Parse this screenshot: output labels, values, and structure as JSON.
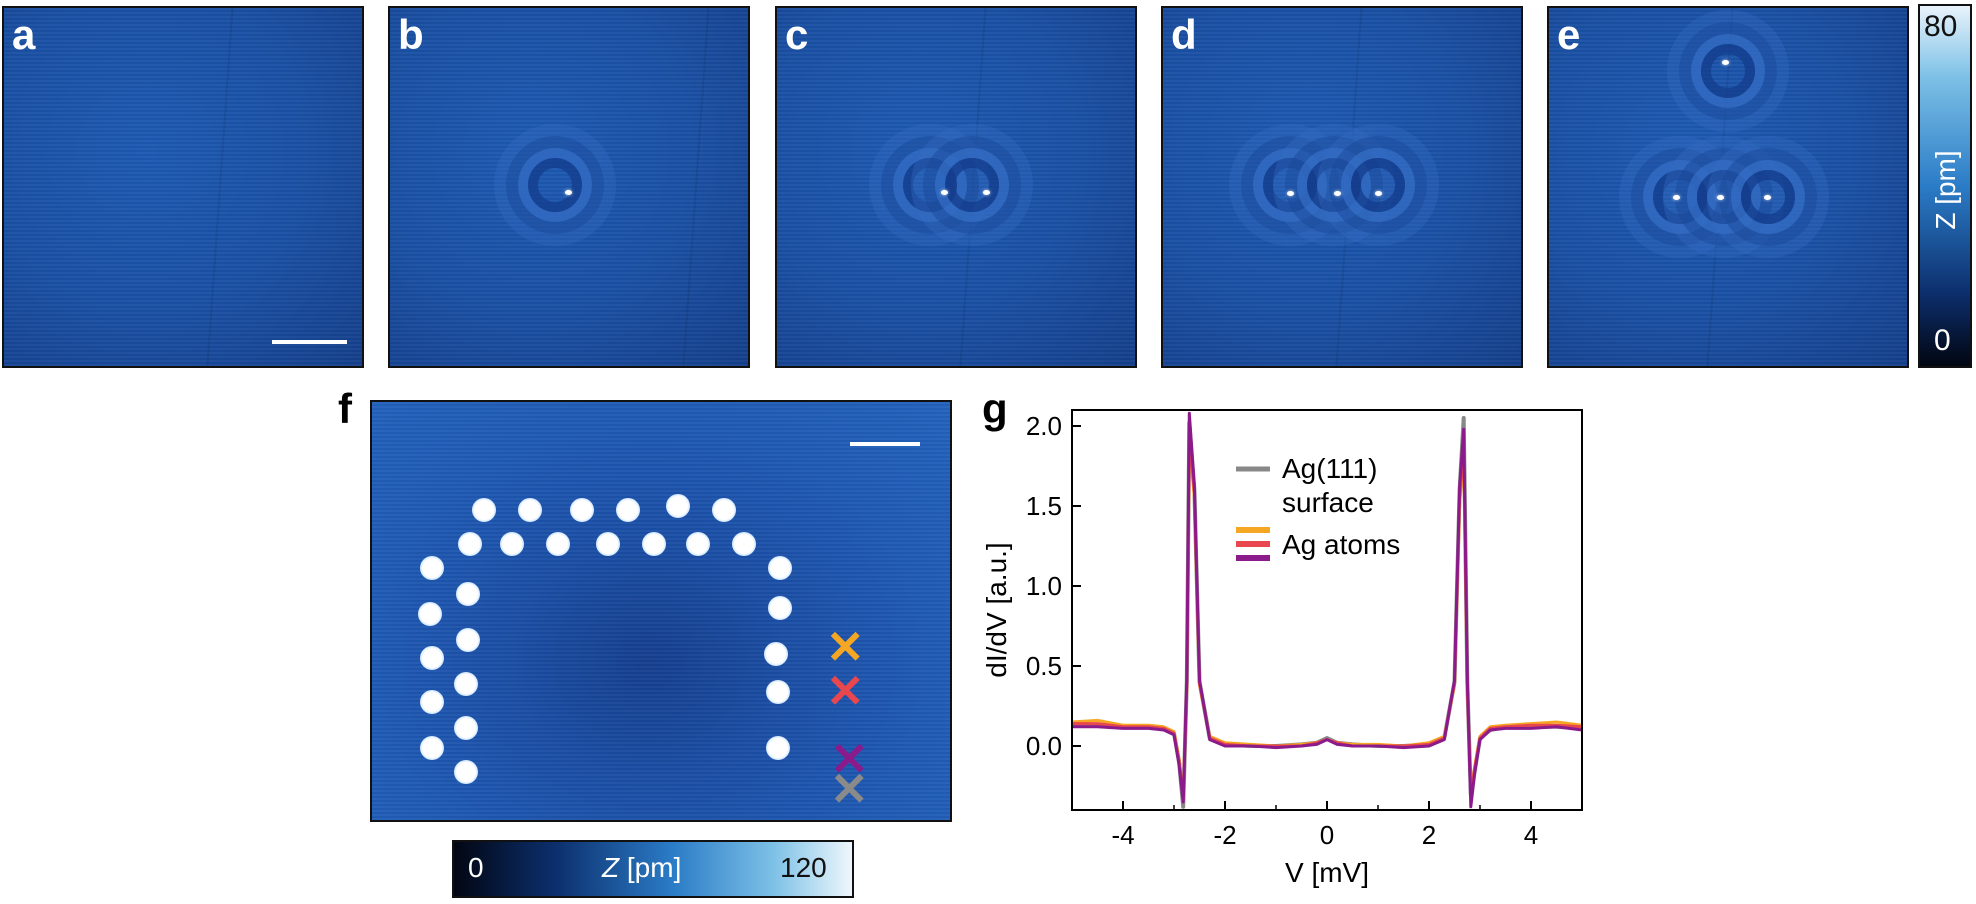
{
  "panels": {
    "a": "a",
    "b": "b",
    "c": "c",
    "d": "d",
    "e": "e",
    "f": "f",
    "g": "g"
  },
  "colorbar_top": {
    "max": "80",
    "min": "0",
    "label": "Z [pm]"
  },
  "colorbar_f": {
    "min": "0",
    "max": "120",
    "label_italic": "Z",
    "label_unit": " [pm]"
  },
  "chart_data": {
    "type": "line",
    "title": "",
    "xlabel": "V [mV]",
    "ylabel": "dI/dV [a.u.]",
    "xlim": [
      -5,
      5
    ],
    "ylim": [
      -0.4,
      2.1
    ],
    "xticks": [
      -4,
      -2,
      0,
      2,
      4
    ],
    "xtick_labels": [
      "-4",
      "-2",
      "0",
      "2",
      "4"
    ],
    "yticks": [
      0.0,
      0.5,
      1.0,
      1.5,
      2.0
    ],
    "ytick_labels": [
      "0.0",
      "0.5",
      "1.0",
      "1.5",
      "2.0"
    ],
    "legend": [
      {
        "label": "Ag(111)",
        "label2": "surface",
        "color": "#888888"
      },
      {
        "label": "Ag atoms",
        "colors": [
          "#f5a623",
          "#e8474e",
          "#8b1a8b"
        ]
      }
    ],
    "series": [
      {
        "name": "Ag(111) surface",
        "color": "#888888",
        "x": [
          -5,
          -4.5,
          -4,
          -3.5,
          -3.2,
          -3.0,
          -2.9,
          -2.82,
          -2.75,
          -2.7,
          -2.6,
          -2.5,
          -2.3,
          -2,
          -1.5,
          -1,
          -0.5,
          -0.2,
          0,
          0.2,
          0.5,
          1,
          1.5,
          2,
          2.3,
          2.5,
          2.6,
          2.68,
          2.75,
          2.82,
          2.9,
          3.0,
          3.2,
          3.5,
          4,
          4.5,
          5
        ],
        "y": [
          0.13,
          0.13,
          0.12,
          0.12,
          0.11,
          0.08,
          -0.1,
          -0.38,
          0.4,
          2.02,
          1.6,
          0.4,
          0.05,
          0.01,
          0.0,
          0.0,
          0.01,
          0.02,
          0.05,
          0.02,
          0.01,
          0.0,
          0.0,
          0.01,
          0.05,
          0.4,
          1.6,
          2.05,
          0.4,
          -0.3,
          -0.15,
          0.05,
          0.1,
          0.12,
          0.12,
          0.12,
          0.11
        ]
      },
      {
        "name": "Ag atom 1",
        "color": "#f5a623",
        "x": [
          -5,
          -4.5,
          -4,
          -3.5,
          -3.2,
          -3.0,
          -2.9,
          -2.82,
          -2.75,
          -2.7,
          -2.6,
          -2.5,
          -2.3,
          -2,
          -1.5,
          -1,
          -0.5,
          -0.2,
          0,
          0.2,
          0.5,
          1,
          1.5,
          2,
          2.3,
          2.5,
          2.6,
          2.68,
          2.75,
          2.82,
          2.9,
          3.0,
          3.2,
          3.5,
          4,
          4.5,
          5
        ],
        "y": [
          0.15,
          0.16,
          0.13,
          0.13,
          0.12,
          0.09,
          -0.08,
          -0.3,
          0.35,
          1.9,
          1.55,
          0.38,
          0.06,
          0.02,
          0.01,
          0.0,
          0.01,
          0.02,
          0.04,
          0.02,
          0.01,
          0.01,
          0.0,
          0.02,
          0.06,
          0.38,
          1.5,
          1.85,
          0.35,
          -0.28,
          -0.12,
          0.06,
          0.12,
          0.13,
          0.14,
          0.15,
          0.13
        ]
      },
      {
        "name": "Ag atom 2",
        "color": "#e8474e",
        "x": [
          -5,
          -4.5,
          -4,
          -3.5,
          -3.2,
          -3.0,
          -2.9,
          -2.82,
          -2.75,
          -2.7,
          -2.6,
          -2.5,
          -2.3,
          -2,
          -1.5,
          -1,
          -0.5,
          -0.2,
          0,
          0.2,
          0.5,
          1,
          1.5,
          2,
          2.3,
          2.5,
          2.6,
          2.68,
          2.75,
          2.82,
          2.9,
          3.0,
          3.2,
          3.5,
          4,
          4.5,
          5
        ],
        "y": [
          0.14,
          0.14,
          0.12,
          0.12,
          0.11,
          0.08,
          -0.09,
          -0.33,
          0.38,
          1.95,
          1.58,
          0.39,
          0.05,
          0.01,
          0.0,
          0.0,
          0.0,
          0.02,
          0.04,
          0.02,
          0.0,
          0.0,
          0.0,
          0.01,
          0.05,
          0.39,
          1.55,
          1.9,
          0.38,
          -0.3,
          -0.13,
          0.05,
          0.11,
          0.12,
          0.13,
          0.13,
          0.12
        ]
      },
      {
        "name": "Ag atom 3",
        "color": "#8b1a8b",
        "x": [
          -5,
          -4.5,
          -4,
          -3.5,
          -3.2,
          -3.0,
          -2.9,
          -2.82,
          -2.75,
          -2.7,
          -2.6,
          -2.5,
          -2.3,
          -2,
          -1.5,
          -1,
          -0.5,
          -0.2,
          0,
          0.2,
          0.5,
          1,
          1.5,
          2,
          2.3,
          2.5,
          2.6,
          2.68,
          2.75,
          2.82,
          2.9,
          3.0,
          3.2,
          3.5,
          4,
          4.5,
          5
        ],
        "y": [
          0.12,
          0.12,
          0.11,
          0.11,
          0.1,
          0.07,
          -0.12,
          -0.35,
          0.42,
          2.08,
          1.62,
          0.41,
          0.04,
          0.0,
          0.0,
          -0.01,
          0.0,
          0.01,
          0.04,
          0.01,
          0.0,
          0.0,
          -0.01,
          0.0,
          0.04,
          0.41,
          1.62,
          1.98,
          0.42,
          -0.38,
          -0.16,
          0.04,
          0.1,
          0.11,
          0.11,
          0.12,
          0.1
        ]
      }
    ]
  }
}
